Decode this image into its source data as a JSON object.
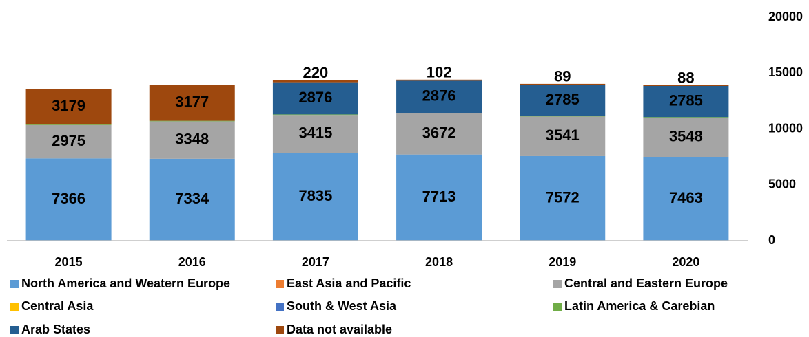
{
  "chart_data": {
    "type": "stacked_bar",
    "categories": [
      "2015",
      "2016",
      "2017",
      "2018",
      "2019",
      "2020"
    ],
    "series": [
      {
        "name": "North America and Weatern Europe",
        "color": "#5b9bd5",
        "show_labels": true,
        "values": [
          7366,
          7334,
          7835,
          7713,
          7572,
          7463
        ]
      },
      {
        "name": "East Asia and Pacific",
        "color": "#ed7d31",
        "show_labels": false,
        "values": [
          0,
          0,
          0,
          0,
          0,
          0
        ]
      },
      {
        "name": "Central and Eastern Europe",
        "color": "#a5a5a5",
        "show_labels": true,
        "values": [
          2975,
          3348,
          3415,
          3672,
          3541,
          3548
        ]
      },
      {
        "name": "Central Asia",
        "color": "#ffc000",
        "show_labels": false,
        "values": [
          0,
          0,
          0,
          0,
          0,
          0
        ]
      },
      {
        "name": "South & West Asia",
        "color": "#4472c4",
        "show_labels": false,
        "values": [
          0,
          0,
          0,
          0,
          0,
          0
        ]
      },
      {
        "name": "Latin America & Carebian",
        "color": "#70ad47",
        "show_labels": false,
        "values": [
          50,
          50,
          50,
          50,
          50,
          50
        ]
      },
      {
        "name": "Arab States",
        "color": "#255e91",
        "show_labels": true,
        "values": [
          null,
          null,
          2876,
          2876,
          2785,
          2785
        ]
      },
      {
        "name": "Data not available",
        "color": "#9e480e",
        "show_labels": true,
        "values": [
          3179,
          3177,
          220,
          102,
          89,
          88
        ]
      }
    ],
    "ylim": [
      0,
      20000
    ],
    "yticks": [
      0,
      5000,
      10000,
      15000,
      20000
    ],
    "y_axis_side": "right",
    "grid": false
  }
}
